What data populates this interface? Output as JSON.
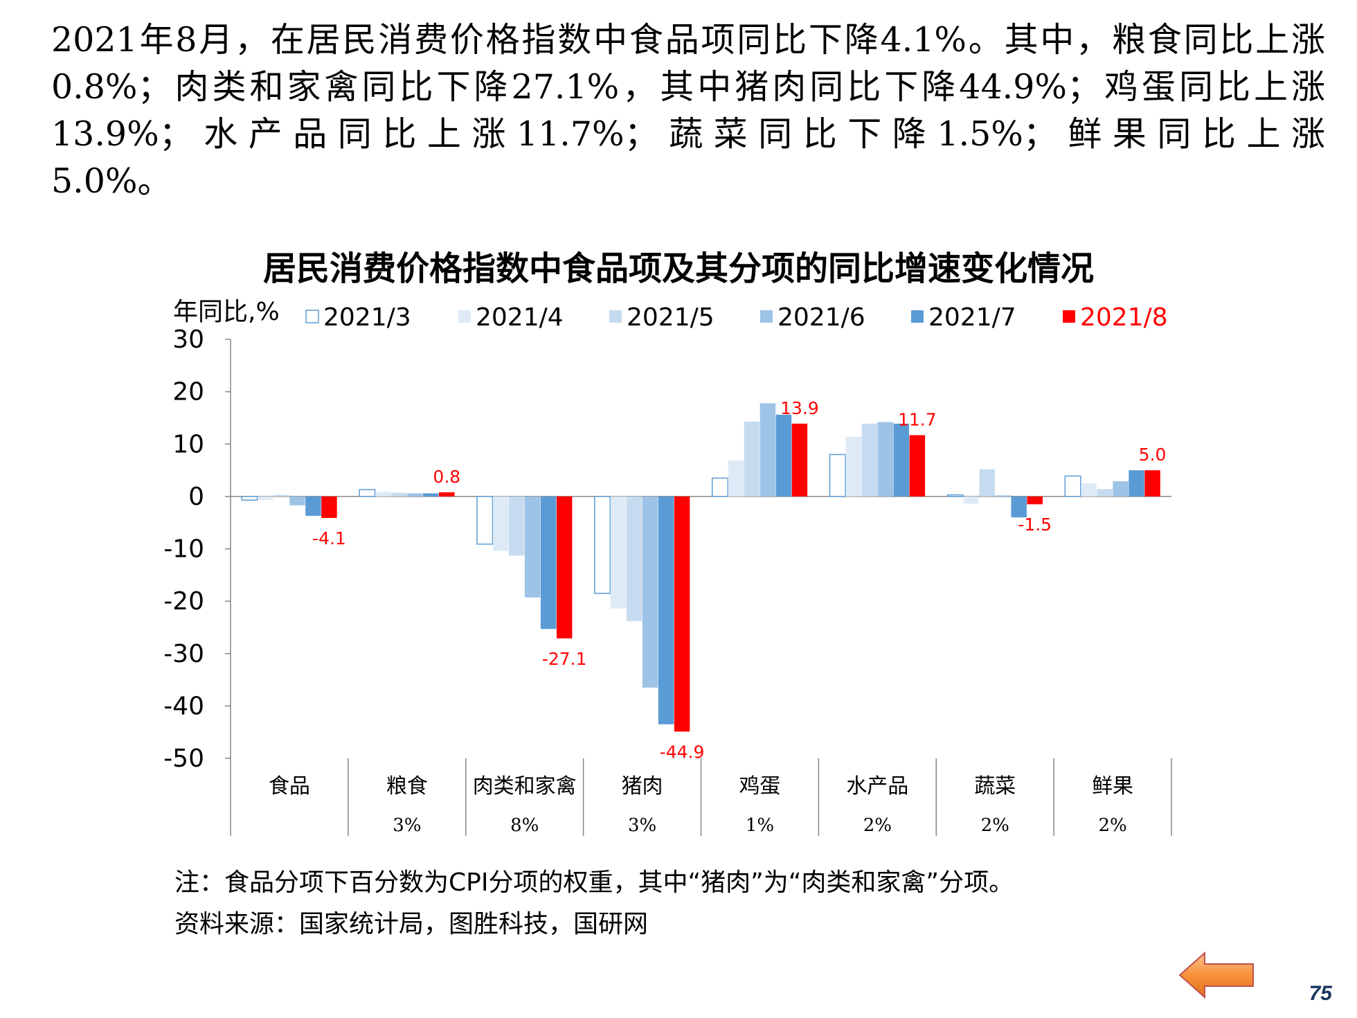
{
  "intro": {
    "paragraph": "2021年8月，在居民消费价格指数中食品项同比下降4.1%。其中，粮食同比上涨0.8%；肉类和家禽同比下降27.1%，其中猪肉同比下降44.9%；鸡蛋同比上涨13.9%；水产品同比上涨11.7%；蔬菜同比下降1.5%；鲜果同比上涨",
    "tail": "5.0%。"
  },
  "chart_data": {
    "type": "bar",
    "title": "居民消费价格指数中食品项及其分项的同比增速变化情况",
    "ylabel": "年同比,%",
    "xlabel": "",
    "ylim": [
      -50,
      30
    ],
    "yticks": [
      30,
      20,
      10,
      0,
      -10,
      -20,
      -30,
      -40,
      -50
    ],
    "grid": false,
    "legend_position": "top",
    "categories": [
      "食品",
      "粮食",
      "肉类和家禽",
      "猪肉",
      "鸡蛋",
      "水产品",
      "蔬菜",
      "鲜果"
    ],
    "category_weights": [
      "",
      "3%",
      "8%",
      "3%",
      "1%",
      "2%",
      "2%",
      "2%"
    ],
    "series": [
      {
        "name": "2021/3",
        "color": "#ffffff",
        "stroke": "#5b9bd5",
        "values": [
          -0.7,
          1.3,
          -9.1,
          -18.5,
          3.5,
          8.0,
          0.3,
          3.9
        ]
      },
      {
        "name": "2021/4",
        "color": "#deebf7",
        "stroke": "",
        "values": [
          -0.7,
          0.9,
          -10.4,
          -21.4,
          6.9,
          11.4,
          -1.4,
          2.5
        ]
      },
      {
        "name": "2021/5",
        "color": "#c6dbef",
        "stroke": "",
        "values": [
          0.3,
          0.7,
          -11.3,
          -23.8,
          14.3,
          13.9,
          5.2,
          1.4
        ]
      },
      {
        "name": "2021/6",
        "color": "#9dc3e6",
        "stroke": "",
        "values": [
          -1.7,
          0.6,
          -19.3,
          -36.5,
          17.8,
          14.2,
          0.2,
          2.9
        ]
      },
      {
        "name": "2021/7",
        "color": "#5b9bd5",
        "stroke": "",
        "values": [
          -3.7,
          0.6,
          -25.3,
          -43.5,
          15.6,
          13.9,
          -4.0,
          5.0
        ]
      },
      {
        "name": "2021/8",
        "color": "#ff0000",
        "stroke": "",
        "values": [
          -4.1,
          0.8,
          -27.1,
          -44.9,
          13.9,
          11.7,
          -1.5,
          5.0
        ]
      }
    ],
    "data_labels": [
      "-4.1",
      "0.8",
      "-27.1",
      "-44.9",
      "13.9",
      "11.7",
      "-1.5",
      "5.0"
    ],
    "data_label_color": "#ff0000",
    "label_series": "2021/8"
  },
  "notes": {
    "note": "注：食品分项下百分数为CPI分项的权重，其中“猪肉”为“肉类和家禽”分项。",
    "source": "资料来源：国家统计局，图胜科技，国研网"
  },
  "footer": {
    "page_number": "75",
    "back_icon": "left-arrow-icon",
    "back_color": "#f7923a"
  }
}
